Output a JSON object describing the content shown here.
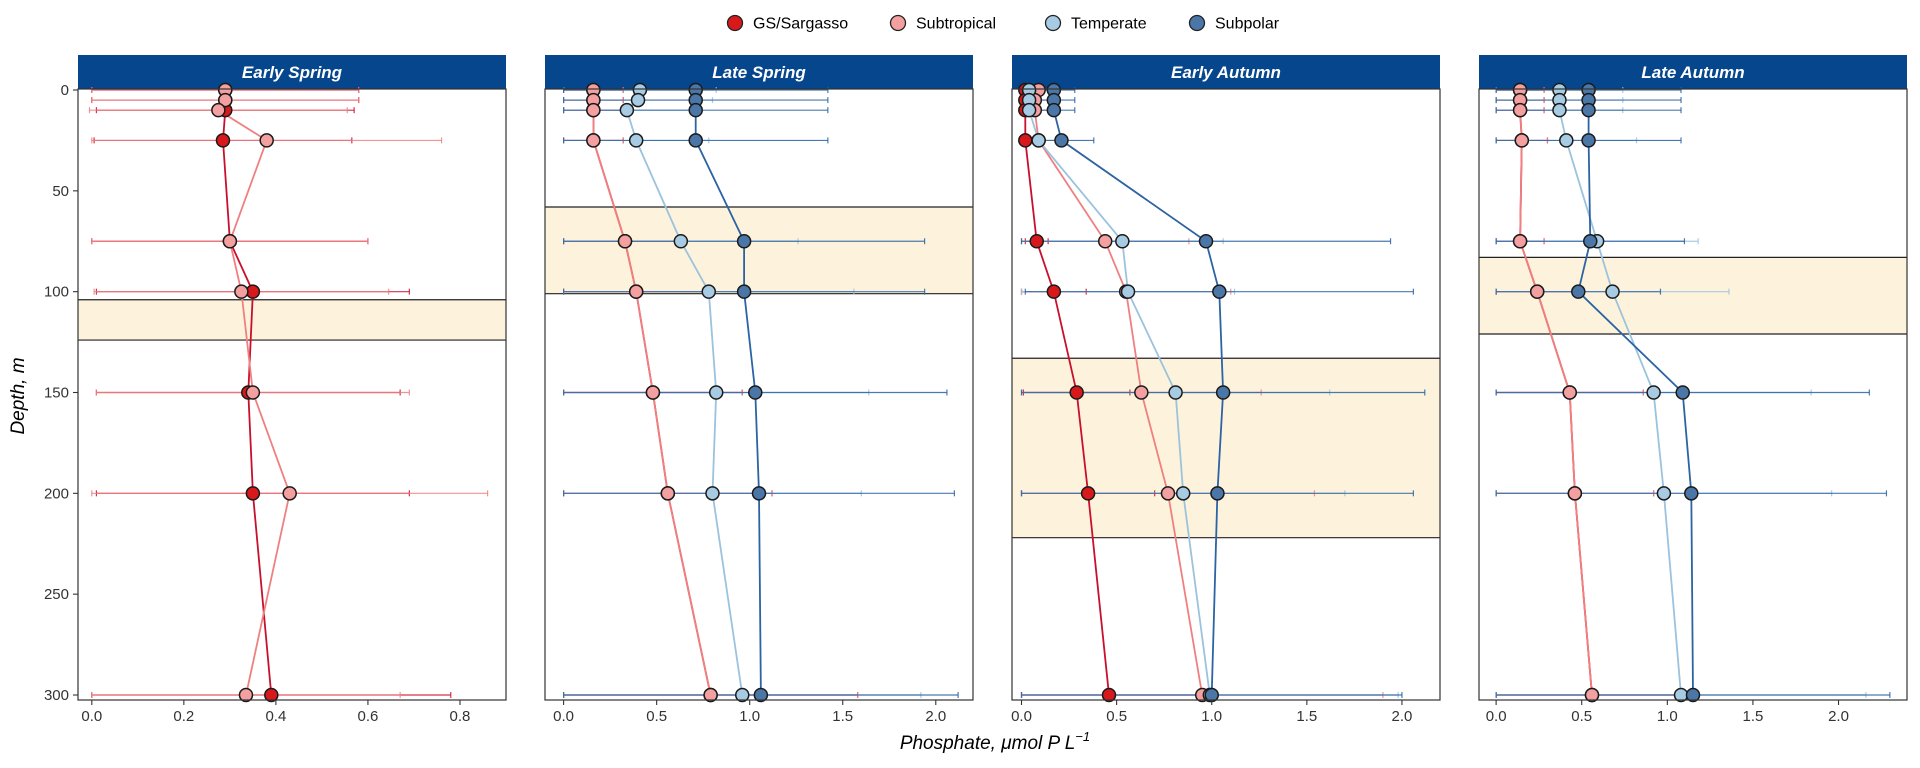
{
  "chart_data": {
    "type": "line",
    "xlabel": "Phosphate, μmol P L",
    "xlabel_superscript": "−1",
    "ylabel": "Depth, m",
    "y_reversed": true,
    "ylim": [
      0,
      300
    ],
    "yticks": [
      0,
      50,
      100,
      150,
      200,
      250,
      300
    ],
    "depths": [
      0,
      5,
      10,
      25,
      75,
      100,
      150,
      200,
      300
    ],
    "legend_position": "top",
    "legend": [
      {
        "name": "GS/Sargasso",
        "color": "#D7191C"
      },
      {
        "name": "Subtropical",
        "color": "#F4A0A0"
      },
      {
        "name": "Temperate",
        "color": "#A6CBE3"
      },
      {
        "name": "Subpolar",
        "color": "#4A77A8"
      }
    ],
    "line_colors": {
      "GS/Sargasso": "#C8102E",
      "Subtropical": "#F08080",
      "Temperate": "#9CC3DD",
      "Subpolar": "#2C63A3"
    },
    "panels": [
      {
        "title": "Early Spring",
        "xlim": [
          -0.03,
          0.9
        ],
        "xticks": [
          0.0,
          0.2,
          0.4,
          0.6,
          0.8
        ],
        "xtick_labels": [
          "0.0",
          "0.2",
          "0.4",
          "0.6",
          "0.8"
        ],
        "mld_band": [
          104,
          124
        ],
        "series": [
          {
            "name": "GS/Sargasso",
            "values": [
              0.29,
              0.29,
              0.29,
              0.285,
              0.3,
              0.35,
              0.34,
              0.35,
              0.39
            ],
            "error": [
              0.29,
              0.29,
              0.28,
              0.28,
              0.3,
              0.34,
              0.33,
              0.34,
              0.39
            ]
          },
          {
            "name": "Subtropical",
            "values": [
              0.29,
              0.29,
              0.275,
              0.38,
              0.3,
              0.325,
              0.35,
              0.43,
              0.335
            ],
            "error": [
              0.29,
              0.29,
              0.28,
              0.38,
              0.3,
              0.32,
              0.34,
              0.43,
              0.335
            ]
          }
        ]
      },
      {
        "title": "Late Spring",
        "xlim": [
          -0.1,
          2.2
        ],
        "xticks": [
          0.0,
          0.5,
          1.0,
          1.5,
          2.0
        ],
        "xtick_labels": [
          "0.0",
          "0.5",
          "1.0",
          "1.5",
          "2.0"
        ],
        "mld_band": [
          58,
          101
        ],
        "series": [
          {
            "name": "GS/Sargasso",
            "values": [
              0.16,
              0.16,
              0.16,
              0.16,
              0.33,
              0.39,
              0.48,
              0.56,
              0.79
            ],
            "error": [
              0.16,
              0.16,
              0.16,
              0.16,
              0.33,
              0.39,
              0.48,
              0.56,
              0.79
            ]
          },
          {
            "name": "Subtropical",
            "values": [
              0.16,
              0.16,
              0.16,
              0.16,
              0.33,
              0.39,
              0.48,
              0.56,
              0.79
            ],
            "error": [
              0.16,
              0.16,
              0.16,
              0.16,
              0.33,
              0.39,
              0.48,
              0.56,
              0.79
            ]
          },
          {
            "name": "Temperate",
            "values": [
              0.41,
              0.4,
              0.34,
              0.39,
              0.63,
              0.78,
              0.82,
              0.8,
              0.96
            ],
            "error": [
              0.41,
              0.4,
              0.34,
              0.39,
              0.63,
              0.78,
              0.82,
              0.8,
              0.96
            ]
          },
          {
            "name": "Subpolar",
            "values": [
              0.71,
              0.71,
              0.71,
              0.71,
              0.97,
              0.97,
              1.03,
              1.05,
              1.06
            ],
            "error": [
              0.71,
              0.71,
              0.71,
              0.71,
              0.97,
              0.97,
              1.03,
              1.05,
              1.06
            ]
          }
        ]
      },
      {
        "title": "Early Autumn",
        "xlim": [
          -0.05,
          2.2
        ],
        "xticks": [
          0.0,
          0.5,
          1.0,
          1.5,
          2.0
        ],
        "xtick_labels": [
          "0.0",
          "0.5",
          "1.0",
          "1.5",
          "2.0"
        ],
        "mld_band": [
          133,
          222
        ],
        "series": [
          {
            "name": "GS/Sargasso",
            "values": [
              0.02,
              0.02,
              0.02,
              0.02,
              0.08,
              0.17,
              0.29,
              0.35,
              0.46
            ],
            "error": [
              0.02,
              0.02,
              0.02,
              0.02,
              0.06,
              0.17,
              0.28,
              0.35,
              0.46
            ]
          },
          {
            "name": "Subtropical",
            "values": [
              0.09,
              0.07,
              0.07,
              0.09,
              0.44,
              0.55,
              0.63,
              0.77,
              0.95
            ],
            "error": [
              0.09,
              0.07,
              0.07,
              0.09,
              0.44,
              0.55,
              0.63,
              0.77,
              0.95
            ]
          },
          {
            "name": "Temperate",
            "values": [
              0.04,
              0.04,
              0.04,
              0.09,
              0.53,
              0.56,
              0.81,
              0.85,
              0.99
            ],
            "error": [
              0.04,
              0.04,
              0.04,
              0.09,
              0.53,
              0.56,
              0.81,
              0.85,
              0.99
            ]
          },
          {
            "name": "Subpolar",
            "values": [
              0.17,
              0.17,
              0.17,
              0.21,
              0.97,
              1.04,
              1.06,
              1.03,
              1.0
            ],
            "error": [
              0.11,
              0.11,
              0.11,
              0.17,
              0.97,
              1.02,
              1.06,
              1.03,
              1.0
            ]
          }
        ]
      },
      {
        "title": "Late Autumn",
        "xlim": [
          -0.1,
          2.4
        ],
        "xticks": [
          0.0,
          0.5,
          1.0,
          1.5,
          2.0
        ],
        "xtick_labels": [
          "0.0",
          "0.5",
          "1.0",
          "1.5",
          "2.0"
        ],
        "mld_band": [
          83,
          121
        ],
        "series": [
          {
            "name": "GS/Sargasso",
            "values": [
              0.14,
              0.14,
              0.14,
              0.15,
              0.14,
              0.24,
              0.43,
              0.46,
              0.56
            ],
            "error": [
              0.14,
              0.14,
              0.14,
              0.15,
              0.14,
              0.24,
              0.43,
              0.46,
              0.56
            ]
          },
          {
            "name": "Subtropical",
            "values": [
              0.14,
              0.14,
              0.14,
              0.15,
              0.14,
              0.24,
              0.43,
              0.46,
              0.56
            ],
            "error": [
              0.14,
              0.14,
              0.14,
              0.15,
              0.14,
              0.24,
              0.43,
              0.46,
              0.56
            ]
          },
          {
            "name": "Temperate",
            "values": [
              0.37,
              0.37,
              0.37,
              0.41,
              0.59,
              0.68,
              0.92,
              0.98,
              1.08
            ],
            "error": [
              0.37,
              0.37,
              0.37,
              0.41,
              0.59,
              0.68,
              0.92,
              0.98,
              1.08
            ]
          },
          {
            "name": "Subpolar",
            "values": [
              0.54,
              0.54,
              0.54,
              0.54,
              0.55,
              0.48,
              1.09,
              1.14,
              1.15
            ],
            "error": [
              0.54,
              0.54,
              0.54,
              0.54,
              0.55,
              0.48,
              1.09,
              1.14,
              1.15
            ]
          }
        ]
      }
    ]
  }
}
